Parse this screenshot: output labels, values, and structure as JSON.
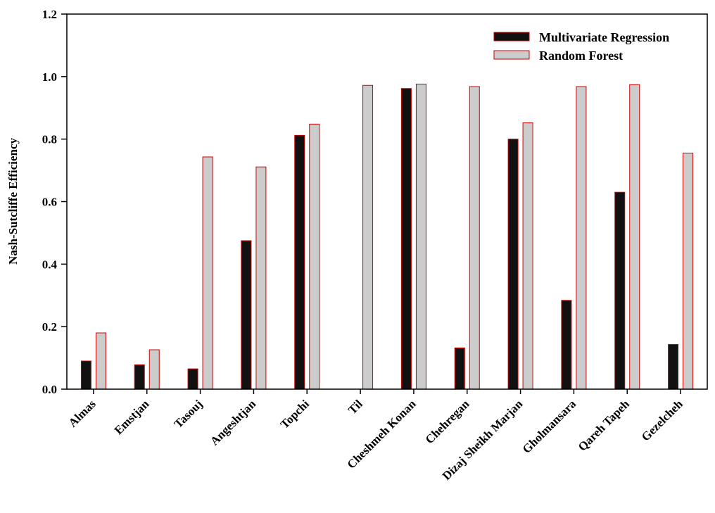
{
  "chart_data": {
    "type": "bar",
    "title": "",
    "xlabel": "",
    "ylabel": "Nash-Sutcliffe Efficiency",
    "ylim": [
      0,
      1.2
    ],
    "yticks": [
      "0.0",
      "0.2",
      "0.4",
      "0.6",
      "0.8",
      "1.0",
      "1.2"
    ],
    "grid": false,
    "legend_position": "top-right",
    "categories": [
      "Almas",
      "Emstjan",
      "Tasouj",
      "Angeshtjan",
      "Topchi",
      "Til",
      "Cheshmeh Konan",
      "Chehregan",
      "Dizaj Sheikh Marjan",
      "Gholmansara",
      "Qareh Tapeh",
      "Gezelcheh"
    ],
    "series": [
      {
        "name": "Multivariate Regression",
        "fill": "#111111",
        "stroke": "#cc0000",
        "values": [
          0.09,
          0.078,
          0.065,
          0.475,
          0.812,
          0.0,
          0.962,
          0.132,
          0.8,
          0.284,
          0.63,
          0.143
        ]
      },
      {
        "name": "Random Forest",
        "fill": "#cccccc",
        "stroke": "#cc0000",
        "values": [
          0.18,
          0.126,
          0.743,
          0.711,
          0.848,
          0.972,
          0.976,
          0.968,
          0.852,
          0.968,
          0.974,
          0.755
        ]
      }
    ]
  }
}
